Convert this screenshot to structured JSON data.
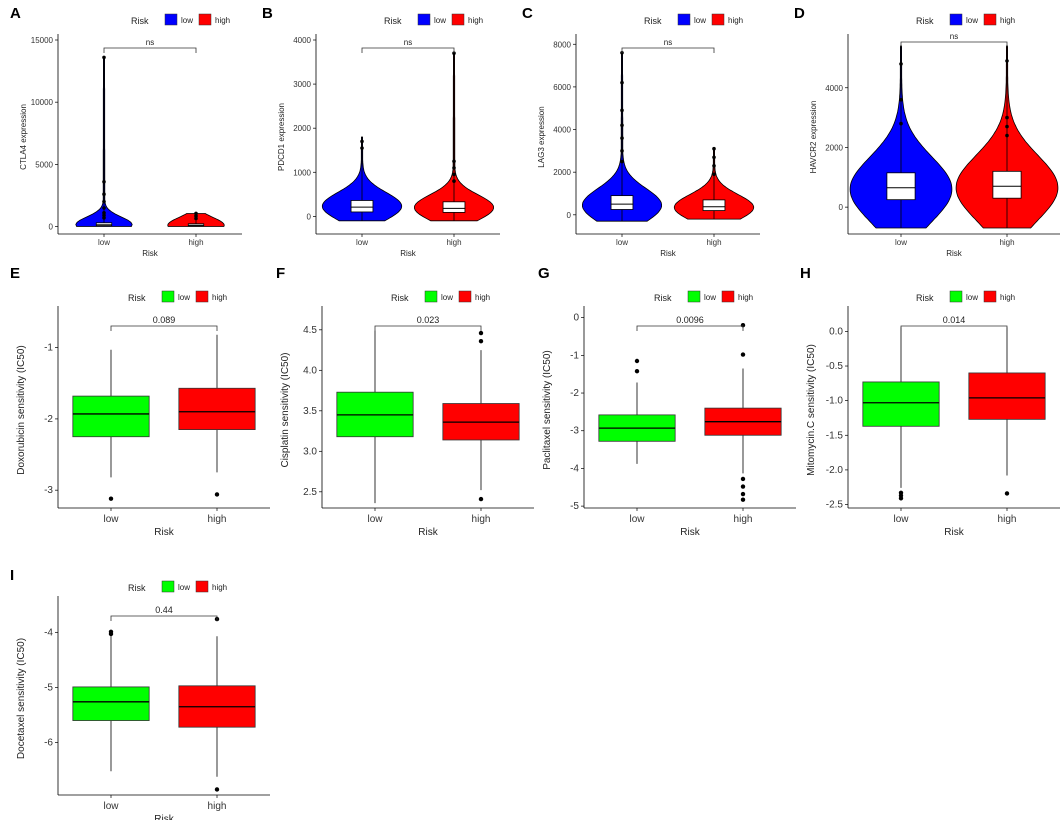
{
  "chart_data": [
    {
      "panel": "A",
      "type": "violin",
      "ylabel": "CTLA4 expression",
      "xlabel": "Risk",
      "categories": [
        "low",
        "high"
      ],
      "colors": [
        "#0000ff",
        "#ff0000"
      ],
      "legend": {
        "title": "Risk",
        "entries": [
          "low",
          "high"
        ],
        "position": "top"
      },
      "ylim": [
        -600,
        15000
      ],
      "yticks": [
        0,
        5000,
        10000,
        15000
      ],
      "ytick_labels": [
        "0",
        "5000",
        "10000",
        "15000"
      ],
      "annotation": "ns",
      "series": [
        {
          "name": "low",
          "q1": 60,
          "median": 140,
          "q3": 300,
          "whisker_low": 0,
          "whisker_high": 13600,
          "peak": 150,
          "width": 0.6,
          "outliers": [
            13600,
            3600,
            2600,
            2000,
            1500,
            1100,
            900,
            700
          ]
        },
        {
          "name": "high",
          "q1": 40,
          "median": 100,
          "q3": 220,
          "whisker_low": 0,
          "whisker_high": 1050,
          "peak": 100,
          "width": 0.6,
          "outliers": [
            1050,
            850,
            650
          ]
        }
      ]
    },
    {
      "panel": "B",
      "type": "violin",
      "ylabel": "PDCD1 expression",
      "xlabel": "Risk",
      "categories": [
        "low",
        "high"
      ],
      "colors": [
        "#0000ff",
        "#ff0000"
      ],
      "legend": {
        "title": "Risk",
        "entries": [
          "low",
          "high"
        ],
        "position": "top"
      },
      "ylim": [
        -400,
        4000
      ],
      "yticks": [
        0,
        1000,
        2000,
        3000,
        4000
      ],
      "ytick_labels": [
        "0",
        "1000",
        "2000",
        "3000",
        "4000"
      ],
      "annotation": "ns",
      "series": [
        {
          "name": "low",
          "q1": 100,
          "median": 210,
          "q3": 360,
          "whisker_low": -100,
          "whisker_high": 1800,
          "peak": 230,
          "width": 0.85,
          "outliers": [
            1700,
            1550
          ]
        },
        {
          "name": "high",
          "q1": 90,
          "median": 180,
          "q3": 330,
          "whisker_low": -100,
          "whisker_high": 3700,
          "peak": 200,
          "width": 0.85,
          "outliers": [
            3700,
            1250,
            1100,
            950,
            800
          ]
        }
      ]
    },
    {
      "panel": "C",
      "type": "violin",
      "ylabel": "LAG3 expression",
      "xlabel": "Risk",
      "categories": [
        "low",
        "high"
      ],
      "colors": [
        "#0000ff",
        "#ff0000"
      ],
      "legend": {
        "title": "Risk",
        "entries": [
          "low",
          "high"
        ],
        "position": "top"
      },
      "ylim": [
        -900,
        8200
      ],
      "yticks": [
        0,
        2000,
        4000,
        6000,
        8000
      ],
      "ytick_labels": [
        "0",
        "2000",
        "4000",
        "6000",
        "8000"
      ],
      "annotation": "ns",
      "series": [
        {
          "name": "low",
          "q1": 250,
          "median": 500,
          "q3": 900,
          "whisker_low": -300,
          "whisker_high": 7600,
          "peak": 450,
          "width": 0.85,
          "outliers": [
            7600,
            6200,
            4900,
            4200,
            3600,
            3000,
            2500
          ]
        },
        {
          "name": "high",
          "q1": 200,
          "median": 380,
          "q3": 700,
          "whisker_low": -200,
          "whisker_high": 3100,
          "peak": 350,
          "width": 0.85,
          "outliers": [
            3100,
            2700,
            2300,
            1900
          ]
        }
      ]
    },
    {
      "panel": "D",
      "type": "violin",
      "ylabel": "HAVCR2 expression",
      "xlabel": "Risk",
      "categories": [
        "low",
        "high"
      ],
      "colors": [
        "#0000ff",
        "#ff0000"
      ],
      "legend": {
        "title": "Risk",
        "entries": [
          "low",
          "high"
        ],
        "position": "top"
      },
      "ylim": [
        -900,
        5600
      ],
      "yticks": [
        0,
        2000,
        4000
      ],
      "ytick_labels": [
        "0",
        "2000",
        "4000"
      ],
      "annotation": "ns",
      "series": [
        {
          "name": "low",
          "q1": 250,
          "median": 650,
          "q3": 1150,
          "whisker_low": -700,
          "whisker_high": 5400,
          "peak": 600,
          "width": 0.95,
          "outliers": [
            4800,
            3600,
            2800
          ]
        },
        {
          "name": "high",
          "q1": 300,
          "median": 700,
          "q3": 1200,
          "whisker_low": -700,
          "whisker_high": 5400,
          "peak": 650,
          "width": 0.95,
          "outliers": [
            4900,
            3000,
            2700,
            2400
          ]
        }
      ]
    },
    {
      "panel": "E",
      "type": "box",
      "ylabel": "Doxorubicin sensitivity (IC50)",
      "xlabel": "Risk",
      "categories": [
        "low",
        "high"
      ],
      "colors": [
        "#00ff00",
        "#ff0000"
      ],
      "legend": {
        "title": "Risk",
        "entries": [
          "low",
          "high"
        ],
        "position": "top"
      },
      "ylim": [
        -3.25,
        -0.5
      ],
      "yticks": [
        -3,
        -2,
        -1
      ],
      "ytick_labels": [
        "-3",
        "-2",
        "-1"
      ],
      "annotation": "0.089",
      "series": [
        {
          "name": "low",
          "q1": -2.25,
          "median": -1.93,
          "q3": -1.68,
          "whisker_low": -2.82,
          "whisker_high": -1.03,
          "outliers": [
            -3.12
          ]
        },
        {
          "name": "high",
          "q1": -2.15,
          "median": -1.9,
          "q3": -1.57,
          "whisker_low": -2.75,
          "whisker_high": -0.82,
          "outliers": [
            -3.06
          ]
        }
      ]
    },
    {
      "panel": "F",
      "type": "box",
      "ylabel": "Cisplatin sensitivity (IC50)",
      "xlabel": "Risk",
      "categories": [
        "low",
        "high"
      ],
      "colors": [
        "#00ff00",
        "#ff0000"
      ],
      "legend": {
        "title": "Risk",
        "entries": [
          "low",
          "high"
        ],
        "position": "top"
      },
      "ylim": [
        2.3,
        4.72
      ],
      "yticks": [
        2.5,
        3.0,
        3.5,
        4.0,
        4.5
      ],
      "ytick_labels": [
        "2.5",
        "3.0",
        "3.5",
        "4.0",
        "4.5"
      ],
      "annotation": "0.023",
      "series": [
        {
          "name": "low",
          "q1": 3.18,
          "median": 3.45,
          "q3": 3.73,
          "whisker_low": 2.36,
          "whisker_high": 4.49,
          "outliers": []
        },
        {
          "name": "high",
          "q1": 3.14,
          "median": 3.36,
          "q3": 3.59,
          "whisker_low": 2.52,
          "whisker_high": 4.25,
          "outliers": [
            4.46,
            4.36,
            2.41
          ]
        }
      ]
    },
    {
      "panel": "G",
      "type": "box",
      "ylabel": "Paclitaxel sensitivity (IC50)",
      "xlabel": "Risk",
      "categories": [
        "low",
        "high"
      ],
      "colors": [
        "#00ff00",
        "#ff0000"
      ],
      "legend": {
        "title": "Risk",
        "entries": [
          "low",
          "high"
        ],
        "position": "top"
      },
      "ylim": [
        -5.05,
        0.15
      ],
      "yticks": [
        -5,
        -4,
        -3,
        -2,
        -1,
        0
      ],
      "ytick_labels": [
        "-5",
        "-4",
        "-3",
        "-2",
        "-1",
        "0"
      ],
      "annotation": "0.0096",
      "series": [
        {
          "name": "low",
          "q1": -3.28,
          "median": -2.93,
          "q3": -2.58,
          "whisker_low": -3.88,
          "whisker_high": -1.72,
          "outliers": [
            -1.15,
            -1.42
          ]
        },
        {
          "name": "high",
          "q1": -3.12,
          "median": -2.76,
          "q3": -2.4,
          "whisker_low": -4.13,
          "whisker_high": -1.35,
          "outliers": [
            -0.2,
            -0.98,
            -4.28,
            -4.48,
            -4.68,
            -4.83
          ]
        }
      ]
    },
    {
      "panel": "H",
      "type": "box",
      "ylabel": "Mitomycin.C sensitivity (IC50)",
      "xlabel": "Risk",
      "categories": [
        "low",
        "high"
      ],
      "colors": [
        "#00ff00",
        "#ff0000"
      ],
      "legend": {
        "title": "Risk",
        "entries": [
          "low",
          "high"
        ],
        "position": "top"
      },
      "ylim": [
        -2.55,
        0.28
      ],
      "yticks": [
        -2.5,
        -2.0,
        -1.5,
        -1.0,
        -0.5,
        0.0
      ],
      "ytick_labels": [
        "-2.5",
        "-2.0",
        "-1.5",
        "-1.0",
        "-0.5",
        "0.0"
      ],
      "annotation": "0.014",
      "series": [
        {
          "name": "low",
          "q1": -1.37,
          "median": -1.03,
          "q3": -0.73,
          "whisker_low": -2.26,
          "whisker_high": 0.06,
          "outliers": [
            -2.33,
            -2.37,
            -2.41
          ]
        },
        {
          "name": "high",
          "q1": -1.27,
          "median": -0.96,
          "q3": -0.6,
          "whisker_low": -2.08,
          "whisker_high": 0.06,
          "outliers": [
            -2.34
          ]
        }
      ]
    },
    {
      "panel": "I",
      "type": "box",
      "ylabel": "Docetaxel sensitivity (IC50)",
      "xlabel": "Risk",
      "categories": [
        "low",
        "high"
      ],
      "colors": [
        "#00ff00",
        "#ff0000"
      ],
      "legend": {
        "title": "Risk",
        "entries": [
          "low",
          "high"
        ],
        "position": "top"
      },
      "ylim": [
        -6.95,
        -3.45
      ],
      "yticks": [
        -6,
        -5,
        -4
      ],
      "ytick_labels": [
        "-6",
        "-5",
        "-4"
      ],
      "annotation": "0.44",
      "series": [
        {
          "name": "low",
          "q1": -5.6,
          "median": -5.26,
          "q3": -4.99,
          "whisker_low": -6.52,
          "whisker_high": -4.05,
          "outliers": [
            -3.99,
            -4.03
          ]
        },
        {
          "name": "high",
          "q1": -5.72,
          "median": -5.35,
          "q3": -4.97,
          "whisker_low": -6.62,
          "whisker_high": -4.07,
          "outliers": [
            -3.76,
            -6.85
          ]
        }
      ]
    }
  ]
}
